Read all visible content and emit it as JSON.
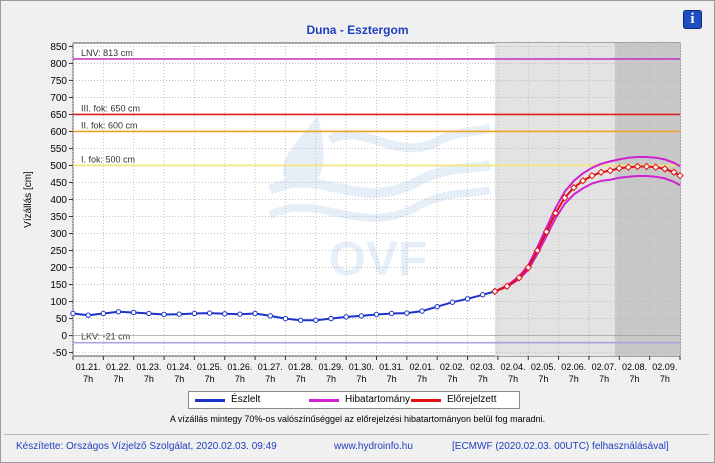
{
  "page": {
    "title": "Duna - Esztergom",
    "info_icon": "info-icon",
    "note": "A vízállás mintegy 70%-os valószínűséggel az előrejelzési hibatartományon belül fog maradni.",
    "footer_left": "Készítette: Országos Vízjelző Szolgálat, 2020.02.03. 09:49",
    "footer_center": "www.hydroinfo.hu",
    "footer_right": "[ECMWF (2020.02.03. 00UTC) felhasználásával]",
    "watermark": "OVF"
  },
  "legend": {
    "observed": "Észlelt",
    "error_band": "Hibatartomány",
    "forecast": "Előrejelzett"
  },
  "colors": {
    "observed": "#1a33c8",
    "error_band": "#d020d0",
    "forecast": "#e01010",
    "lnv": "#c030c0",
    "level3": "#e02020",
    "level2": "#f0a030",
    "level1": "#f3e676",
    "lkv": "#b0a0e0",
    "title": "#1f3fbf",
    "forecast_shade": "#e3e3e3",
    "far_shade": "#c8c8c8"
  },
  "chart_data": {
    "type": "line",
    "title": "Duna - Esztergom",
    "ylabel": "Vízállás [cm]",
    "xlabel": "",
    "ylim": [
      -60,
      860
    ],
    "yticks": [
      -50,
      0,
      50,
      100,
      150,
      200,
      250,
      300,
      350,
      400,
      450,
      500,
      550,
      600,
      650,
      700,
      750,
      800,
      850
    ],
    "ytick_labels": [
      "-50",
      "0",
      "50",
      "100",
      "150",
      "200",
      "250",
      "300",
      "350",
      "400",
      "450",
      "500",
      "550",
      "600",
      "650",
      "700",
      "750",
      "800",
      "850"
    ],
    "xlim": [
      0,
      20
    ],
    "xticks": [
      0,
      1,
      2,
      3,
      4,
      5,
      6,
      7,
      8,
      9,
      10,
      11,
      12,
      13,
      14,
      15,
      16,
      17,
      18,
      19,
      20
    ],
    "xtick_dates": [
      "01.21.",
      "01.22.",
      "01.23.",
      "01.24.",
      "01.25.",
      "01.26.",
      "01.27.",
      "01.28.",
      "01.29.",
      "01.30.",
      "01.31.",
      "02.01.",
      "02.02.",
      "02.03.",
      "02.04.",
      "02.05.",
      "02.06.",
      "02.07.",
      "02.08.",
      "02.09."
    ],
    "xtick_hour": "7h",
    "grid": true,
    "forecast_start": 13.9,
    "far_range_start": 17.85,
    "reference_lines": [
      {
        "name": "LNV: 813 cm",
        "value": 813,
        "color_key": "lnv"
      },
      {
        "name": "III. fok: 650 cm",
        "value": 650,
        "color_key": "level3"
      },
      {
        "name": "II. fok: 600 cm",
        "value": 600,
        "color_key": "level2"
      },
      {
        "name": "I. fok: 500 cm",
        "value": 500,
        "color_key": "level1"
      },
      {
        "name": "LKV: -21 cm",
        "value": -21,
        "color_key": "lkv"
      }
    ],
    "series": [
      {
        "name": "Észlelt",
        "x": [
          0,
          0.5,
          1,
          1.5,
          2,
          2.5,
          3,
          3.5,
          4,
          4.5,
          5,
          5.5,
          6,
          6.5,
          7,
          7.5,
          8,
          8.5,
          9,
          9.5,
          10,
          10.5,
          11,
          11.5,
          12,
          12.5,
          13,
          13.5,
          13.9
        ],
        "values": [
          65,
          60,
          65,
          70,
          68,
          65,
          62,
          63,
          65,
          66,
          64,
          63,
          65,
          58,
          50,
          45,
          45,
          50,
          55,
          58,
          62,
          65,
          66,
          72,
          85,
          98,
          108,
          120,
          130
        ]
      },
      {
        "name": "Előrejelzett",
        "x": [
          13.9,
          14.3,
          14.7,
          15.0,
          15.3,
          15.6,
          15.9,
          16.2,
          16.5,
          16.8,
          17.1,
          17.4,
          17.7,
          18.0,
          18.3,
          18.6,
          18.9,
          19.2,
          19.5,
          19.8,
          20.0
        ],
        "values": [
          130,
          145,
          170,
          200,
          250,
          305,
          360,
          405,
          435,
          455,
          470,
          480,
          485,
          492,
          495,
          497,
          497,
          495,
          490,
          480,
          470
        ]
      },
      {
        "name": "Hibatartomány",
        "x": [
          13.9,
          14.3,
          14.7,
          15.0,
          15.3,
          15.6,
          15.9,
          16.2,
          16.5,
          16.8,
          17.1,
          17.4,
          17.7,
          18.0,
          18.3,
          18.6,
          18.9,
          19.2,
          19.5,
          19.8,
          20.0
        ],
        "upper": [
          130,
          147,
          174,
          207,
          260,
          318,
          375,
          423,
          455,
          477,
          493,
          505,
          512,
          518,
          523,
          525,
          525,
          523,
          518,
          508,
          498
        ],
        "lower": [
          130,
          143,
          166,
          193,
          240,
          292,
          345,
          387,
          415,
          433,
          447,
          455,
          458,
          464,
          467,
          469,
          469,
          467,
          462,
          452,
          442
        ]
      }
    ]
  }
}
